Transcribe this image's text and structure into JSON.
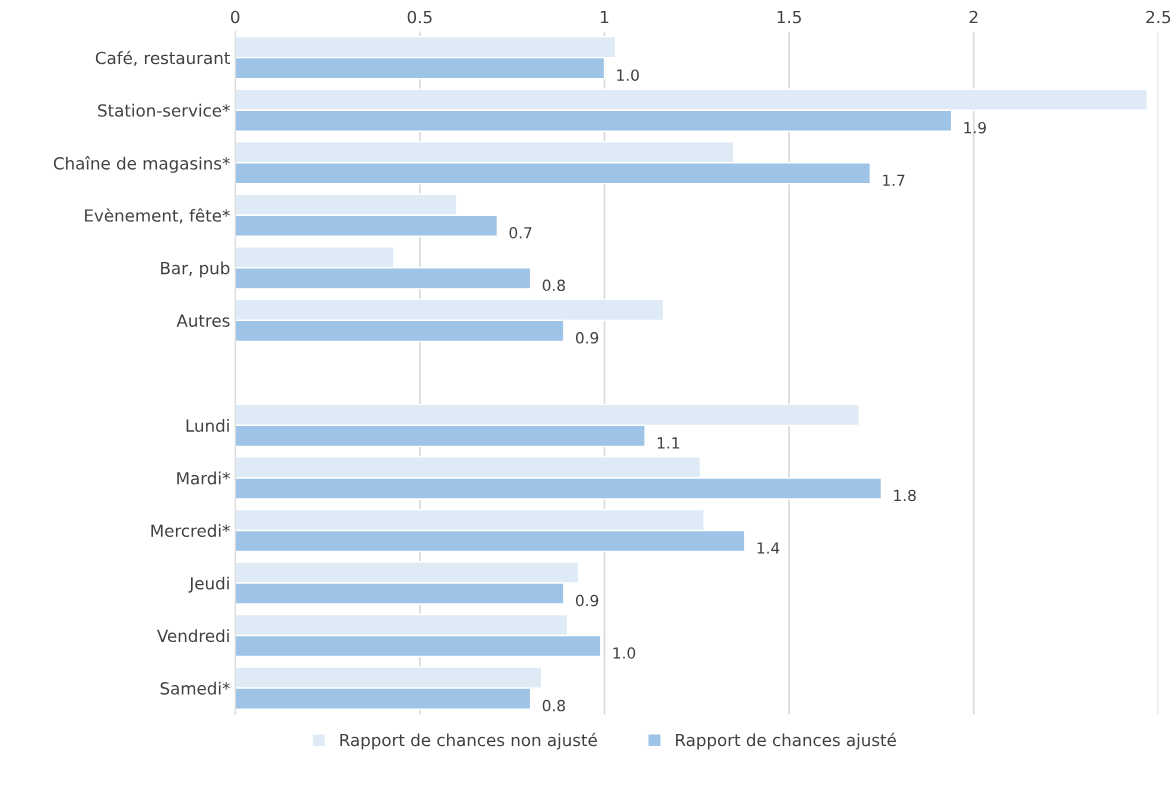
{
  "chart_data": {
    "type": "bar",
    "orientation": "horizontal",
    "categories": [
      "Café, restaurant",
      "Station-service*",
      "Chaîne de magasins*",
      "Evènement, fête*",
      "Bar, pub",
      "Autres",
      null,
      "Lundi",
      "Mardi*",
      "Mercredi*",
      "Jeudi",
      "Vendredi",
      "Samedi*"
    ],
    "series": [
      {
        "name": "Rapport de chances non ajusté",
        "color": "#deebf7",
        "values": [
          1.03,
          2.47,
          1.35,
          0.6,
          0.43,
          1.16,
          null,
          1.69,
          1.26,
          1.27,
          0.93,
          0.9,
          0.83
        ]
      },
      {
        "name": "Rapport de chances ajusté",
        "color": "#9dc3e6",
        "values": [
          1.0,
          1.94,
          1.72,
          0.71,
          0.8,
          0.89,
          null,
          1.11,
          1.75,
          1.38,
          0.89,
          0.99,
          0.8
        ],
        "value_labels": [
          "1.0",
          "1.9",
          "1.7",
          "0.7",
          "0.8",
          "0.9",
          null,
          "1.1",
          "1.8",
          "1.4",
          "0.9",
          "1.0",
          "0.8"
        ]
      }
    ],
    "xlim": [
      0,
      2.5
    ],
    "xticks": [
      0,
      0.5,
      1,
      1.5,
      2,
      2.5
    ],
    "grid": "x",
    "legend": "bottom"
  }
}
